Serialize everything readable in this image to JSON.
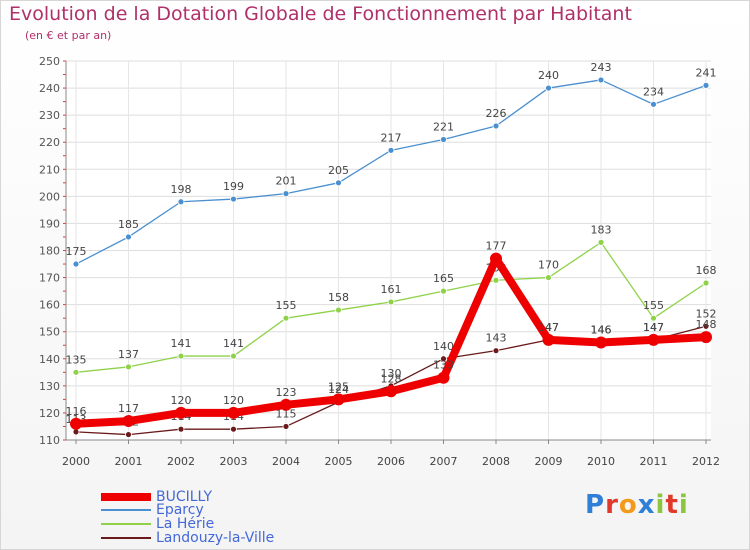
{
  "title": "Evolution de la Dotation Globale de Fonctionnement par Habitant",
  "subtitle": "(en € et par an)",
  "chart_data": {
    "type": "line",
    "title": "Evolution de la Dotation Globale de Fonctionnement par Habitant",
    "subtitle": "(en € et par an)",
    "xlabel": "",
    "ylabel": "",
    "ylim": [
      110,
      250
    ],
    "yticks": [
      110,
      120,
      130,
      140,
      150,
      160,
      170,
      180,
      190,
      200,
      210,
      220,
      230,
      240,
      250
    ],
    "grid": true,
    "categories": [
      "2000",
      "2001",
      "2002",
      "2003",
      "2004",
      "2005",
      "2006",
      "2007",
      "2008",
      "2009",
      "2010",
      "2011",
      "2012"
    ],
    "series": [
      {
        "name": "Eparcy",
        "color": "#4a8fd0",
        "values": [
          175,
          185,
          198,
          199,
          201,
          205,
          217,
          221,
          226,
          240,
          243,
          234,
          241
        ]
      },
      {
        "name": "La Hérie",
        "color": "#8fd24a",
        "values": [
          135,
          137,
          141,
          141,
          155,
          158,
          161,
          165,
          169,
          170,
          183,
          155,
          168
        ]
      },
      {
        "name": "Landouzy-la-Ville",
        "color": "#6a1a1a",
        "values": [
          113,
          112,
          114,
          114,
          115,
          124,
          130,
          140,
          143,
          147,
          146,
          147,
          152
        ]
      },
      {
        "name": "BUCILLY",
        "color": "#ee0000",
        "values": [
          116,
          117,
          120,
          120,
          123,
          125,
          128,
          133,
          177,
          147,
          146,
          147,
          148
        ]
      }
    ],
    "legend_position": "bottom-left",
    "legend": [
      "BUCILLY",
      "Eparcy",
      "La Hérie",
      "Landouzy-la-Ville"
    ]
  },
  "logo": {
    "letters": [
      "P",
      "r",
      "o",
      "x",
      "i",
      "t",
      "i"
    ],
    "colors": [
      "#2f7fd8",
      "#e0392b",
      "#f29a1c",
      "#2f7fd8",
      "#8cc63f",
      "#e0392b",
      "#8cc63f"
    ]
  }
}
